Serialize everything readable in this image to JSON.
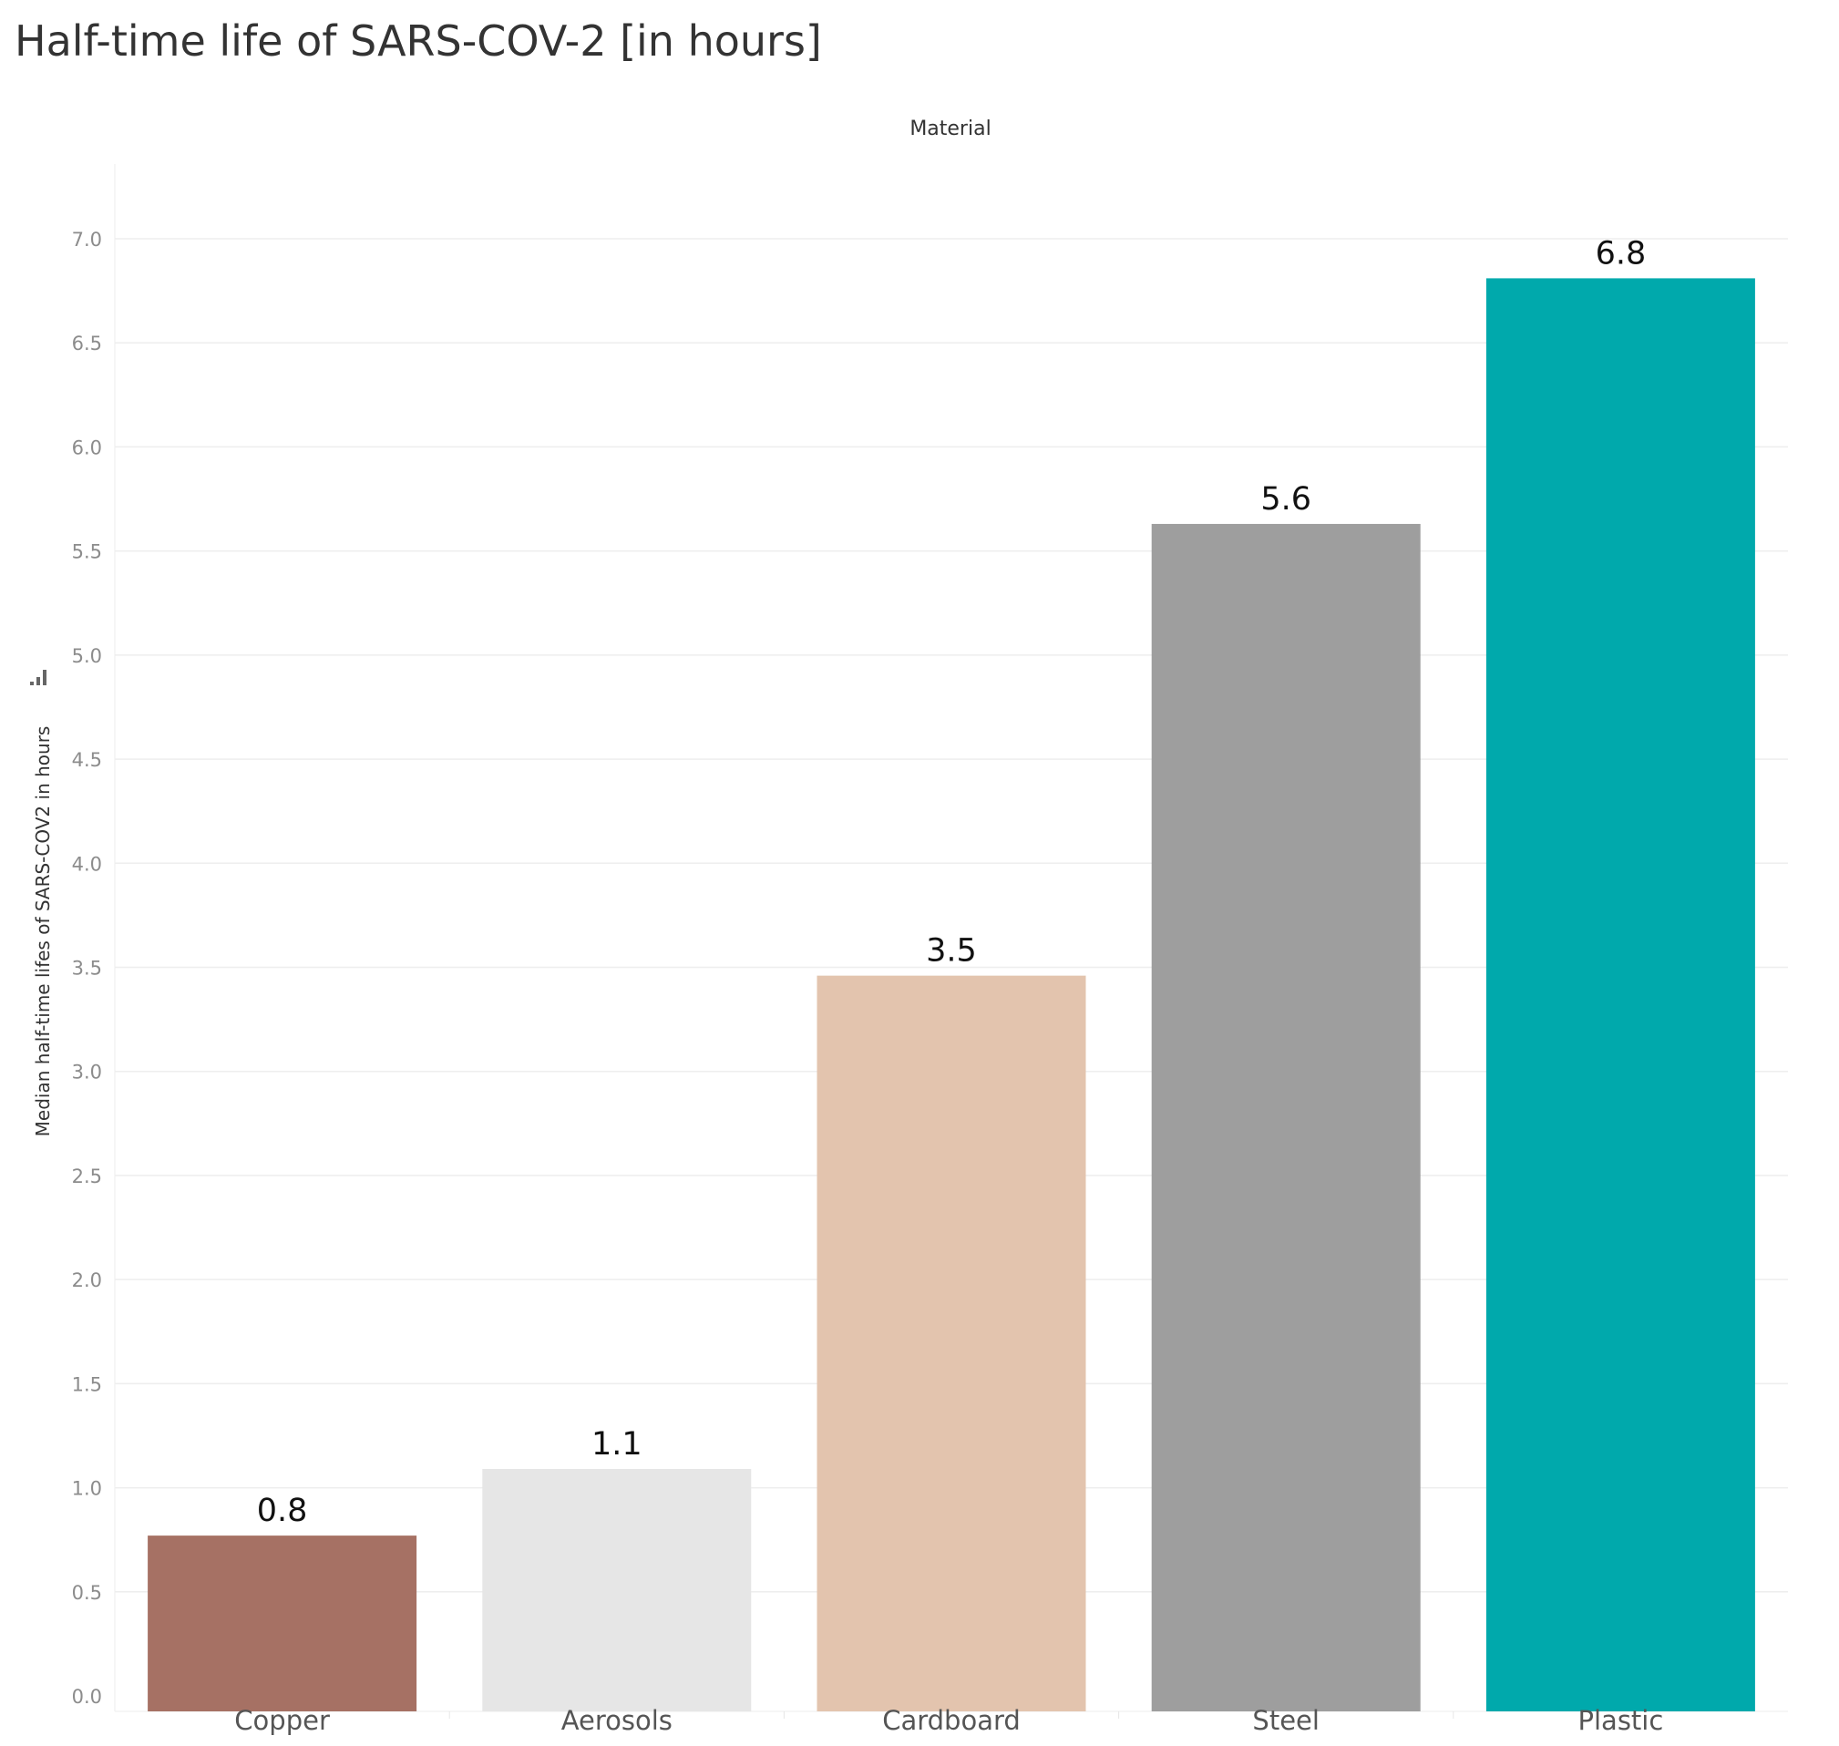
{
  "chart_data": {
    "type": "bar",
    "title": "Half-time life of SARS-COV-2 [in hours]",
    "column_header": "Material",
    "ylabel": "Median half-time lifes of SARS-COV2 in hours",
    "ylim": [
      0,
      7.0
    ],
    "y_ticks": [
      "0.0",
      "0.5",
      "1.0",
      "1.5",
      "2.0",
      "2.5",
      "3.0",
      "3.5",
      "4.0",
      "4.5",
      "5.0",
      "5.5",
      "6.0",
      "6.5",
      "7.0"
    ],
    "grid": true,
    "legend": "none",
    "categories": [
      "Copper",
      "Aerosols",
      "Cardboard",
      "Steel",
      "Plastic"
    ],
    "values": [
      0.77,
      1.09,
      3.46,
      5.63,
      6.81
    ],
    "value_labels": [
      "0.8",
      "1.1",
      "3.5",
      "5.6",
      "6.8"
    ],
    "colors": [
      "#a67164",
      "#e6e6e6",
      "#e3c4ae",
      "#9e9e9e",
      "#00a9ac"
    ]
  }
}
